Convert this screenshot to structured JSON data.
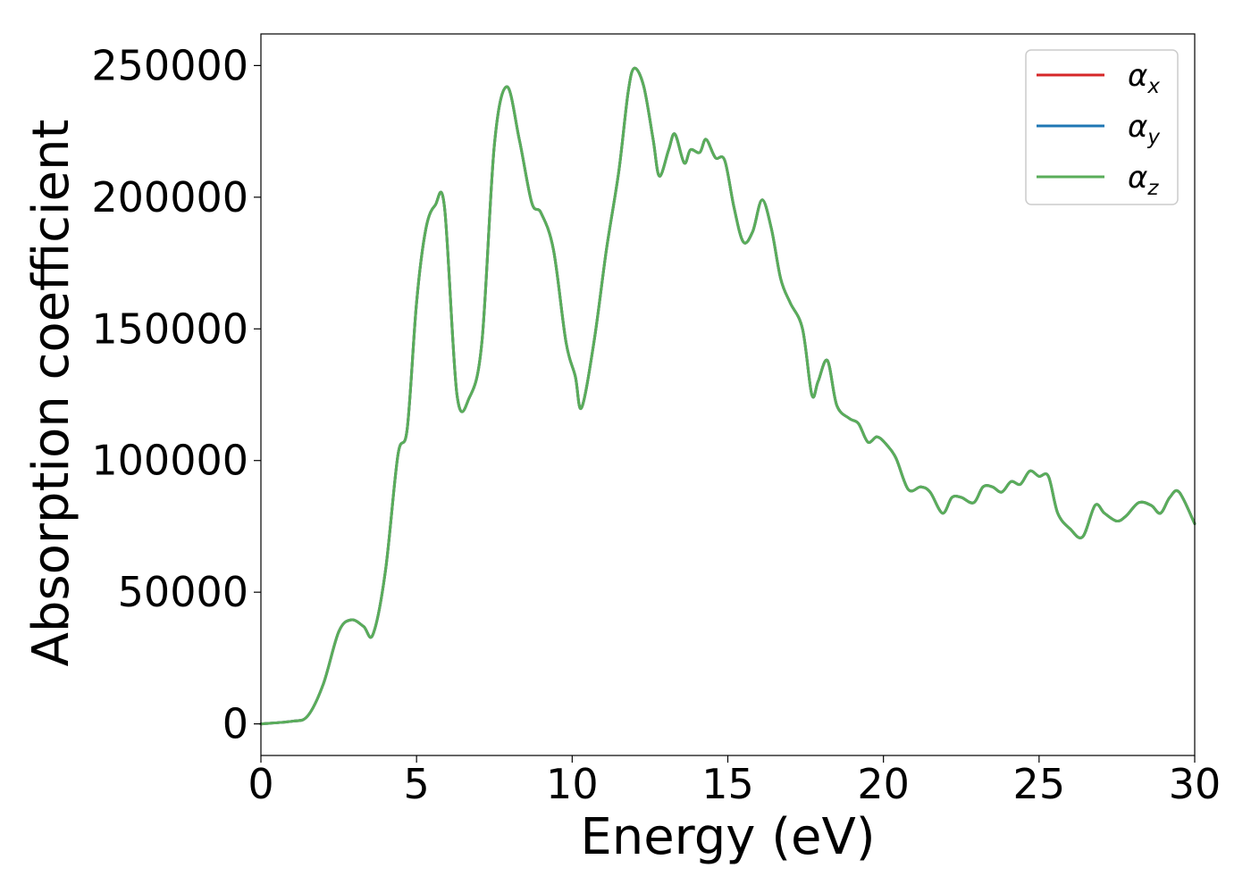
{
  "chart_data": {
    "type": "line",
    "title": "",
    "xlabel": "Energy (eV)",
    "ylabel": "Absorption coefficient",
    "xlim": [
      0,
      30
    ],
    "ylim": [
      -12000,
      262000
    ],
    "xticks": [
      "0",
      "5",
      "10",
      "15",
      "20",
      "25",
      "30"
    ],
    "yticks": [
      "0",
      "50000",
      "100000",
      "150000",
      "200000",
      "250000"
    ],
    "grid": false,
    "legend_position": "top-right",
    "series": [
      {
        "name": "α",
        "subscript": "x",
        "color": "#d62728",
        "x": [
          0,
          1.0,
          1.5,
          2.0,
          2.5,
          2.9,
          3.3,
          3.6,
          4.0,
          4.4,
          4.7,
          5.0,
          5.3,
          5.6,
          5.9,
          6.3,
          6.7,
          7.1,
          7.5,
          7.9,
          8.3,
          8.7,
          9.0,
          9.4,
          9.8,
          10.1,
          10.3,
          10.7,
          11.1,
          11.5,
          11.8,
          12.0,
          12.3,
          12.6,
          12.8,
          13.1,
          13.3,
          13.6,
          13.8,
          14.1,
          14.3,
          14.6,
          14.9,
          15.2,
          15.5,
          15.8,
          16.1,
          16.4,
          16.7,
          17.0,
          17.4,
          17.7,
          17.9,
          18.2,
          18.5,
          18.9,
          19.2,
          19.5,
          19.8,
          20.1,
          20.4,
          20.8,
          21.2,
          21.5,
          21.9,
          22.2,
          22.5,
          22.9,
          23.2,
          23.5,
          23.8,
          24.1,
          24.4,
          24.7,
          25.0,
          25.3,
          25.6,
          26.0,
          26.4,
          26.8,
          27.1,
          27.5,
          27.8,
          28.2,
          28.6,
          28.9,
          29.2,
          29.5,
          30.0
        ],
        "y": [
          0,
          1000,
          3000,
          15000,
          35000,
          39500,
          37000,
          34000,
          58000,
          102000,
          112000,
          160000,
          188000,
          197000,
          196000,
          125000,
          124000,
          145000,
          220000,
          242000,
          222000,
          198000,
          194000,
          180000,
          145000,
          132000,
          120000,
          145000,
          180000,
          210000,
          240000,
          249000,
          242000,
          222000,
          208000,
          218000,
          224000,
          213000,
          218000,
          217000,
          222000,
          215000,
          214000,
          196000,
          183000,
          187000,
          199000,
          188000,
          169000,
          160000,
          150000,
          125000,
          130000,
          138000,
          121000,
          116000,
          114000,
          107000,
          109000,
          106000,
          101000,
          89000,
          90000,
          88000,
          80000,
          86000,
          86000,
          84000,
          90000,
          90000,
          88000,
          92000,
          91000,
          96000,
          94000,
          94000,
          80000,
          74000,
          71000,
          83000,
          80000,
          77000,
          79000,
          84000,
          83000,
          80000,
          86000,
          88000,
          76000
        ]
      },
      {
        "name": "α",
        "subscript": "y",
        "color": "#1f77b4",
        "x": [
          0,
          1.0,
          1.5,
          2.0,
          2.5,
          2.9,
          3.3,
          3.6,
          4.0,
          4.4,
          4.7,
          5.0,
          5.3,
          5.6,
          5.9,
          6.3,
          6.7,
          7.1,
          7.5,
          7.9,
          8.3,
          8.7,
          9.0,
          9.4,
          9.8,
          10.1,
          10.3,
          10.7,
          11.1,
          11.5,
          11.8,
          12.0,
          12.3,
          12.6,
          12.8,
          13.1,
          13.3,
          13.6,
          13.8,
          14.1,
          14.3,
          14.6,
          14.9,
          15.2,
          15.5,
          15.8,
          16.1,
          16.4,
          16.7,
          17.0,
          17.4,
          17.7,
          17.9,
          18.2,
          18.5,
          18.9,
          19.2,
          19.5,
          19.8,
          20.1,
          20.4,
          20.8,
          21.2,
          21.5,
          21.9,
          22.2,
          22.5,
          22.9,
          23.2,
          23.5,
          23.8,
          24.1,
          24.4,
          24.7,
          25.0,
          25.3,
          25.6,
          26.0,
          26.4,
          26.8,
          27.1,
          27.5,
          27.8,
          28.2,
          28.6,
          28.9,
          29.2,
          29.5,
          30.0
        ],
        "y": [
          0,
          1000,
          3000,
          15000,
          35000,
          39500,
          37000,
          34000,
          58000,
          102000,
          112000,
          160000,
          188000,
          197000,
          196000,
          125000,
          124000,
          145000,
          220000,
          242000,
          222000,
          198000,
          194000,
          180000,
          145000,
          132000,
          120000,
          145000,
          180000,
          210000,
          240000,
          249000,
          242000,
          222000,
          208000,
          218000,
          224000,
          213000,
          218000,
          217000,
          222000,
          215000,
          214000,
          196000,
          183000,
          187000,
          199000,
          188000,
          169000,
          160000,
          150000,
          125000,
          130000,
          138000,
          121000,
          116000,
          114000,
          107000,
          109000,
          106000,
          101000,
          89000,
          90000,
          88000,
          80000,
          86000,
          86000,
          84000,
          90000,
          90000,
          88000,
          92000,
          91000,
          96000,
          94000,
          94000,
          80000,
          74000,
          71000,
          83000,
          80000,
          77000,
          79000,
          84000,
          83000,
          80000,
          86000,
          88000,
          76000
        ]
      },
      {
        "name": "α",
        "subscript": "z",
        "color": "#5aad5a",
        "x": [
          0,
          1.0,
          1.5,
          2.0,
          2.5,
          2.9,
          3.3,
          3.6,
          4.0,
          4.4,
          4.7,
          5.0,
          5.3,
          5.6,
          5.9,
          6.3,
          6.7,
          7.1,
          7.5,
          7.9,
          8.3,
          8.7,
          9.0,
          9.4,
          9.8,
          10.1,
          10.3,
          10.7,
          11.1,
          11.5,
          11.8,
          12.0,
          12.3,
          12.6,
          12.8,
          13.1,
          13.3,
          13.6,
          13.8,
          14.1,
          14.3,
          14.6,
          14.9,
          15.2,
          15.5,
          15.8,
          16.1,
          16.4,
          16.7,
          17.0,
          17.4,
          17.7,
          17.9,
          18.2,
          18.5,
          18.9,
          19.2,
          19.5,
          19.8,
          20.1,
          20.4,
          20.8,
          21.2,
          21.5,
          21.9,
          22.2,
          22.5,
          22.9,
          23.2,
          23.5,
          23.8,
          24.1,
          24.4,
          24.7,
          25.0,
          25.3,
          25.6,
          26.0,
          26.4,
          26.8,
          27.1,
          27.5,
          27.8,
          28.2,
          28.6,
          28.9,
          29.2,
          29.5,
          30.0
        ],
        "y": [
          0,
          1000,
          3000,
          15000,
          35000,
          39500,
          37000,
          34000,
          58000,
          102000,
          112000,
          160000,
          188000,
          197000,
          196000,
          125000,
          124000,
          145000,
          220000,
          242000,
          222000,
          198000,
          194000,
          180000,
          145000,
          132000,
          120000,
          145000,
          180000,
          210000,
          240000,
          249000,
          242000,
          222000,
          208000,
          218000,
          224000,
          213000,
          218000,
          217000,
          222000,
          215000,
          214000,
          196000,
          183000,
          187000,
          199000,
          188000,
          169000,
          160000,
          150000,
          125000,
          130000,
          138000,
          121000,
          116000,
          114000,
          107000,
          109000,
          106000,
          101000,
          89000,
          90000,
          88000,
          80000,
          86000,
          86000,
          84000,
          90000,
          90000,
          88000,
          92000,
          91000,
          96000,
          94000,
          94000,
          80000,
          74000,
          71000,
          83000,
          80000,
          77000,
          79000,
          84000,
          83000,
          80000,
          86000,
          88000,
          76000
        ]
      }
    ]
  }
}
